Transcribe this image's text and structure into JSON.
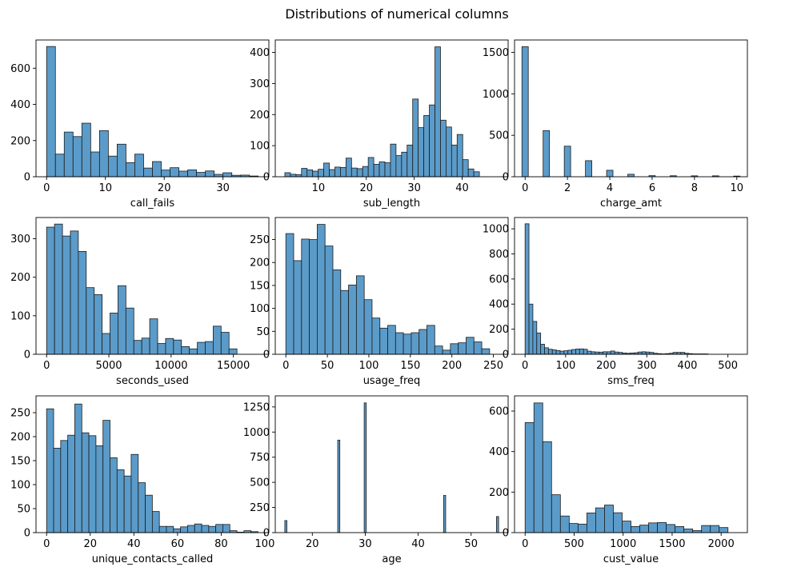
{
  "title": "Distributions of numerical columns",
  "colors": {
    "bar_fill": "#5b9bc9",
    "bar_edge": "#1c1c1c",
    "axis": "#000000"
  },
  "chart_data": [
    {
      "type": "bar",
      "xlabel": "call_fails",
      "xlim": [
        -1.8,
        37.8
      ],
      "ylim": [
        0,
        756
      ],
      "xticks": [
        0,
        10,
        20,
        30
      ],
      "yticks": [
        0,
        200,
        400,
        600
      ],
      "bin_start": 0,
      "bin_width": 1.5,
      "values": [
        720,
        125,
        247,
        222,
        296,
        137,
        255,
        114,
        180,
        78,
        125,
        48,
        84,
        37,
        50,
        31,
        38,
        24,
        32,
        13,
        22,
        8,
        9,
        4
      ]
    },
    {
      "type": "bar",
      "xlabel": "sub_length",
      "xlim": [
        1.0,
        49.6
      ],
      "ylim": [
        0,
        440
      ],
      "xticks": [
        10,
        20,
        30,
        40
      ],
      "yticks": [
        0,
        100,
        200,
        300,
        400
      ],
      "bin_start": 3,
      "bin_width": 1.16,
      "values": [
        13,
        8,
        7,
        27,
        22,
        18,
        24,
        44,
        23,
        31,
        30,
        60,
        28,
        26,
        33,
        62,
        40,
        48,
        45,
        105,
        68,
        79,
        102,
        250,
        158,
        197,
        231,
        418,
        182,
        160,
        102,
        136,
        55,
        25,
        16
      ]
    },
    {
      "type": "bar",
      "xlabel": "charge_amt",
      "xlim": [
        -0.5,
        10.5
      ],
      "ylim": [
        0,
        1650
      ],
      "xticks": [
        0,
        2,
        4,
        6,
        8,
        10
      ],
      "yticks": [
        0,
        500,
        1000,
        1500
      ],
      "bin_start": -0.05,
      "bin_width": 0.3,
      "bins": [
        {
          "x": 0,
          "value": 1570
        },
        {
          "x": 1,
          "value": 557
        },
        {
          "x": 2,
          "value": 369
        },
        {
          "x": 3,
          "value": 194
        },
        {
          "x": 4,
          "value": 78
        },
        {
          "x": 5,
          "value": 30
        },
        {
          "x": 6,
          "value": 13
        },
        {
          "x": 7,
          "value": 12
        },
        {
          "x": 8,
          "value": 11
        },
        {
          "x": 9,
          "value": 11
        },
        {
          "x": 10,
          "value": 8
        }
      ]
    },
    {
      "type": "bar",
      "xlabel": "seconds_used",
      "xlim": [
        -850,
        17850
      ],
      "ylim": [
        0,
        355
      ],
      "xticks": [
        0,
        5000,
        10000,
        15000
      ],
      "yticks": [
        0,
        100,
        200,
        300
      ],
      "bin_start": 0,
      "bin_width": 637,
      "values": [
        330,
        338,
        307,
        320,
        267,
        173,
        155,
        54,
        107,
        178,
        120,
        36,
        42,
        92,
        28,
        41,
        37,
        20,
        14,
        31,
        33,
        73,
        57,
        14
      ]
    },
    {
      "type": "bar",
      "xlabel": "usage_freq",
      "xlim": [
        -12.75,
        267.75
      ],
      "ylim": [
        0,
        298
      ],
      "xticks": [
        0,
        50,
        100,
        150,
        200,
        250
      ],
      "yticks": [
        0,
        50,
        100,
        150,
        200,
        250
      ],
      "bin_start": 0,
      "bin_width": 9.44,
      "values": [
        263,
        204,
        251,
        250,
        283,
        236,
        184,
        139,
        151,
        171,
        119,
        79,
        57,
        63,
        47,
        44,
        47,
        54,
        63,
        18,
        9,
        23,
        25,
        37,
        27,
        12
      ]
    },
    {
      "type": "bar",
      "xlabel": "sms_freq",
      "xlim": [
        -26,
        548
      ],
      "ylim": [
        0,
        1090
      ],
      "xticks": [
        0,
        100,
        200,
        300,
        400,
        500
      ],
      "yticks": [
        0,
        200,
        400,
        600,
        800,
        1000
      ],
      "bin_start": 0,
      "bin_width": 9.6,
      "values": [
        1040,
        400,
        262,
        170,
        80,
        52,
        40,
        35,
        30,
        25,
        28,
        32,
        38,
        42,
        43,
        40,
        25,
        20,
        18,
        17,
        20,
        20,
        26,
        18,
        15,
        10,
        8,
        10,
        12,
        18,
        20,
        18,
        15,
        8,
        5,
        3,
        5,
        8,
        15,
        15,
        15,
        8,
        5,
        3,
        3,
        3,
        3
      ]
    },
    {
      "type": "bar",
      "xlabel": "unique_contacts_called",
      "xlim": [
        -4.85,
        101.85
      ],
      "ylim": [
        0,
        285
      ],
      "xticks": [
        0,
        20,
        40,
        60,
        80,
        100
      ],
      "yticks": [
        0,
        50,
        100,
        150,
        200,
        250
      ],
      "bin_start": 0,
      "bin_width": 3.23,
      "values": [
        258,
        176,
        192,
        203,
        268,
        208,
        202,
        181,
        234,
        156,
        131,
        118,
        163,
        104,
        78,
        44,
        13,
        13,
        8,
        12,
        15,
        18,
        15,
        13,
        17,
        17,
        4,
        1,
        4,
        2
      ]
    },
    {
      "type": "bar",
      "xlabel": "age",
      "xlim": [
        13.0,
        57.0
      ],
      "ylim": [
        0,
        1360
      ],
      "xticks": [
        20,
        30,
        40,
        50
      ],
      "yticks": [
        0,
        250,
        500,
        750,
        1000,
        1250
      ],
      "bin_start": 14.8,
      "bin_width": 0.4,
      "bins": [
        {
          "x": 15,
          "value": 120
        },
        {
          "x": 25,
          "value": 920
        },
        {
          "x": 30,
          "value": 1290
        },
        {
          "x": 45,
          "value": 370
        },
        {
          "x": 55,
          "value": 160
        }
      ]
    },
    {
      "type": "bar",
      "xlabel": "cust_value",
      "xlim": [
        -108,
        2268
      ],
      "ylim": [
        0,
        675
      ],
      "xticks": [
        0,
        500,
        1000,
        1500,
        2000
      ],
      "yticks": [
        0,
        200,
        400,
        600
      ],
      "bin_start": 0,
      "bin_width": 90,
      "values": [
        543,
        640,
        449,
        187,
        82,
        45,
        42,
        97,
        122,
        136,
        98,
        57,
        30,
        37,
        48,
        50,
        40,
        30,
        18,
        10,
        35,
        35,
        25,
        0
      ]
    }
  ]
}
